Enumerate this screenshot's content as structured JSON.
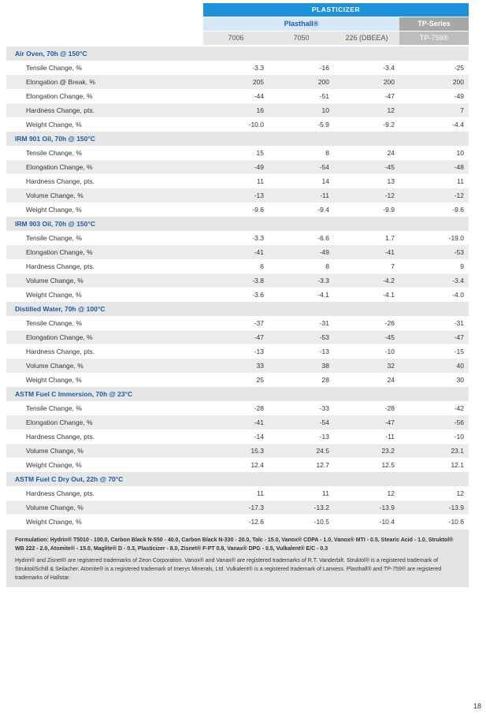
{
  "header": {
    "group": "PLASTICIZER",
    "families": [
      "Plasthall®",
      "TP-Series"
    ],
    "columns": [
      "7006",
      "7050",
      "226 (DBEEA)",
      "TP-759®"
    ]
  },
  "sections": [
    {
      "title": "Air Oven, 70h @ 150°C",
      "rows": [
        {
          "label": "Tensile Change, %",
          "values": [
            "-3.3",
            "-16",
            "-3.4",
            "-25"
          ]
        },
        {
          "label": "Elongation @ Break, %",
          "values": [
            "205",
            "200",
            "200",
            "200"
          ]
        },
        {
          "label": "Elongation Change, %",
          "values": [
            "-44",
            "-51",
            "-47",
            "-49"
          ]
        },
        {
          "label": "Hardness Change, pts.",
          "values": [
            "16",
            "10",
            "12",
            "7"
          ]
        },
        {
          "label": "Weight Change, %",
          "values": [
            "-10.0",
            "-5.9",
            "-9.2",
            "-4.4"
          ]
        }
      ]
    },
    {
      "title": "IRM 901 Oil, 70h @ 150°C",
      "rows": [
        {
          "label": "Tensile Change, %",
          "values": [
            "15",
            "8",
            "24",
            "10"
          ]
        },
        {
          "label": "Elongation Change, %",
          "values": [
            "-49",
            "-54",
            "-45",
            "-48"
          ]
        },
        {
          "label": "Hardness Change, pts.",
          "values": [
            "11",
            "14",
            "13",
            "11"
          ]
        },
        {
          "label": "Volume Change, %",
          "values": [
            "-13",
            "-11",
            "-12",
            "-12"
          ]
        },
        {
          "label": "Weight Change, %",
          "values": [
            "-9.6",
            "-9.4",
            "-9.9",
            "-9.6"
          ]
        }
      ]
    },
    {
      "title": "IRM 903 Oil, 70h @ 150°C",
      "rows": [
        {
          "label": "Tensile Change, %",
          "values": [
            "-3.3",
            "-6.6",
            "1.7",
            "-19.0"
          ]
        },
        {
          "label": "Elongation Change, %",
          "values": [
            "-41",
            "-49",
            "-41",
            "-53"
          ]
        },
        {
          "label": "Hardness Change, pts.",
          "values": [
            "6",
            "8",
            "7",
            "9"
          ]
        },
        {
          "label": "Volume Change, %",
          "values": [
            "-3.8",
            "-3.3",
            "-4.2",
            "-3.4"
          ]
        },
        {
          "label": "Weight Change, %",
          "values": [
            "-3.6",
            "-4.1",
            "-4.1",
            "-4.0"
          ]
        }
      ]
    },
    {
      "title": "Distilled Water, 70h @ 100°C",
      "rows": [
        {
          "label": "Tensile Change, %",
          "values": [
            "-37",
            "-31",
            "-26",
            "-31"
          ]
        },
        {
          "label": "Elongation Change, %",
          "values": [
            "-47",
            "-53",
            "-45",
            "-47"
          ]
        },
        {
          "label": "Hardness Change, pts.",
          "values": [
            "-13",
            "-13",
            "-10",
            "-15"
          ]
        },
        {
          "label": "Volume Change, %",
          "values": [
            "33",
            "38",
            "32",
            "40"
          ]
        },
        {
          "label": "Weight Change, %",
          "values": [
            "25",
            "28",
            "24",
            "30"
          ]
        }
      ]
    },
    {
      "title": "ASTM Fuel C Immersion, 70h @ 23°C",
      "rows": [
        {
          "label": "Tensile Change, %",
          "values": [
            "-28",
            "-33",
            "-28",
            "-42"
          ]
        },
        {
          "label": "Elongation Change, %",
          "values": [
            "-41",
            "-54",
            "-47",
            "-56"
          ]
        },
        {
          "label": "Hardness Change, pts.",
          "values": [
            "-14",
            "-13",
            "-11",
            "-10"
          ]
        },
        {
          "label": "Volume Change, %",
          "values": [
            "15.3",
            "24.5",
            "23.2",
            "23.1"
          ]
        },
        {
          "label": "Weight Change, %",
          "values": [
            "12.4",
            "12.7",
            "12.5",
            "12.1"
          ]
        }
      ]
    },
    {
      "title": "ASTM Fuel C Dry Out, 22h @ 70°C",
      "rows": [
        {
          "label": "Hardness Change, pts.",
          "values": [
            "11",
            "11",
            "12",
            "12"
          ]
        },
        {
          "label": "Volume Change, %",
          "values": [
            "-17.3",
            "-13.2",
            "-13.9",
            "-13.9"
          ]
        },
        {
          "label": "Weight Change, %",
          "values": [
            "-12.6",
            "-10.5",
            "-10.4",
            "-10.6"
          ]
        }
      ]
    }
  ],
  "footnote": {
    "formulation": "Formulation: Hydrin® T5010 - 100.0, Carbon Black N-550 - 40.0, Carbon Black N-330 - 20.0, Talc - 15.0, Vanox® CDPA - 1.0, Vanox® MTI - 0.5, Stearic Acid - 1.0, Struktol® WB 222 - 2.0, Atomite® - 15.0, Maglite® D - 0.3, Plasticizer - 8.0, Zisnet® F-PT 0.8, Vanax® DPG - 0.5, Vulkalent® E/C - 0.3",
    "trademarks": "Hydrin® and Zisnet® are registered trademarks of Zeon Corporation. Vanox® and Vanax® are registered trademarks of R.T. Vanderbilt. Struktol® is a registered trademark of Struktol/Schill & Seilacher. Atomite® is a registered trademark of Imerys Minerals, Ltd. Vulkalent® is a registered trademark of Lanxess. Plasthall® and TP-759® are registered trademarks of Hallstar."
  },
  "page_number": "18"
}
